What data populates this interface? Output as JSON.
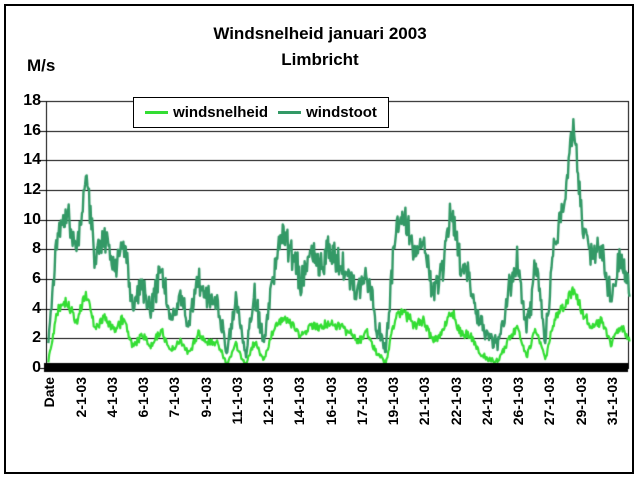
{
  "chart_data": {
    "type": "line",
    "title": "Windsnelheid januari 2003",
    "subtitle": "Limbricht",
    "y_axis_unit": "M/s",
    "ylim": [
      0,
      18
    ],
    "y_ticks": [
      18,
      16,
      14,
      12,
      10,
      8,
      6,
      4,
      2,
      0
    ],
    "x_tick_labels": [
      "Date",
      "2-1-03",
      "4-1-03",
      "6-1-03",
      "7-1-03",
      "9-1-03",
      "11-1-03",
      "12-1-03",
      "14-1-03",
      "16-1-03",
      "17-1-03",
      "19-1-03",
      "21-1-03",
      "22-1-03",
      "24-1-03",
      "26-1-03",
      "27-1-03",
      "29-1-03",
      "31-1-03"
    ],
    "x_categories_per_label": 40,
    "total_hours": 744,
    "anchor_step_hours": 12,
    "grid": "horizontal-only",
    "legend_position": "top-inside",
    "axis_color": "#000000",
    "noise_seed": 7,
    "series": [
      {
        "name": "windstoot",
        "color": "#339966",
        "line_width": 2.4,
        "noise_amplitude": 1.25,
        "anchors": [
          1.5,
          9.0,
          10.5,
          7.5,
          13.2,
          7.0,
          9.0,
          6.5,
          8.7,
          4.5,
          5.5,
          4.0,
          6.8,
          3.5,
          4.5,
          3.0,
          6.0,
          4.5,
          4.8,
          1.0,
          4.5,
          0.8,
          5.0,
          1.5,
          6.5,
          9.3,
          7.5,
          6.0,
          7.8,
          7.0,
          8.0,
          7.5,
          6.5,
          5.0,
          6.5,
          3.0,
          1.0,
          9.0,
          10.4,
          7.5,
          8.6,
          5.0,
          6.5,
          10.9,
          6.5,
          6.0,
          3.0,
          2.0,
          1.5,
          5.0,
          7.2,
          2.5,
          7.0,
          2.0,
          8.8,
          11.0,
          16.5,
          9.5,
          7.5,
          8.5,
          4.5,
          7.5,
          5.5
        ]
      },
      {
        "name": "windsnelheid",
        "color": "#33DD33",
        "line_width": 2.2,
        "noise_amplitude": 0.55,
        "anchors": [
          0.5,
          4.0,
          4.5,
          3.0,
          5.2,
          2.5,
          3.5,
          2.5,
          3.3,
          1.5,
          2.2,
          1.5,
          2.6,
          1.2,
          1.8,
          1.0,
          2.3,
          1.6,
          1.8,
          0.3,
          1.6,
          0.2,
          1.8,
          0.5,
          2.5,
          3.4,
          2.8,
          2.2,
          3.0,
          2.6,
          3.1,
          2.8,
          2.4,
          1.8,
          2.4,
          1.0,
          0.3,
          3.4,
          3.8,
          2.8,
          3.2,
          1.8,
          2.4,
          3.9,
          2.4,
          2.2,
          1.0,
          0.6,
          0.4,
          1.8,
          2.8,
          0.8,
          2.6,
          0.6,
          3.3,
          4.2,
          5.4,
          3.6,
          2.8,
          3.2,
          1.6,
          2.8,
          2.0
        ]
      }
    ],
    "legend_entries": [
      {
        "label": "windsnelheid",
        "color": "#33DD33"
      },
      {
        "label": "windstoot",
        "color": "#339966"
      }
    ]
  }
}
